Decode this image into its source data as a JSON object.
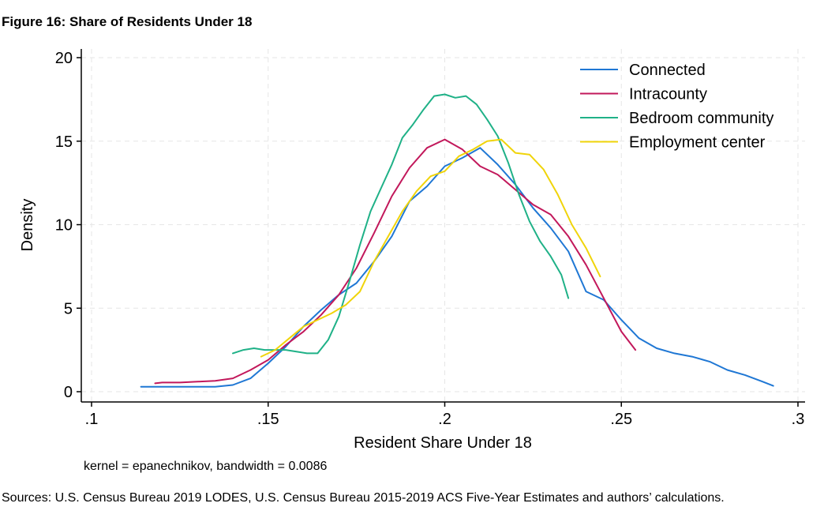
{
  "figure_title": "Figure 16: Share of Residents Under 18",
  "sources": "Sources: U.S. Census Bureau 2019 LODES, U.S. Census Bureau 2015-2019 ACS Five-Year Estimates and authors’ calculations.",
  "chart_data": {
    "type": "line",
    "title": "",
    "xlabel": "Resident Share Under 18",
    "ylabel": "Density",
    "xlim": [
      0.1,
      0.3
    ],
    "ylim": [
      0,
      20
    ],
    "xticks": [
      0.1,
      0.15,
      0.2,
      0.25,
      0.3
    ],
    "xtick_labels": [
      ".1",
      ".15",
      ".2",
      ".25",
      ".3"
    ],
    "yticks": [
      0,
      5,
      10,
      15,
      20
    ],
    "ytick_labels": [
      "0",
      "5",
      "10",
      "15",
      "20"
    ],
    "grid": true,
    "legend_position": "top-right",
    "note": "kernel = epanechnikov, bandwidth = 0.0086",
    "series": [
      {
        "name": "Connected",
        "color": "#1f77d4",
        "x": [
          0.114,
          0.12,
          0.13,
          0.135,
          0.14,
          0.145,
          0.15,
          0.155,
          0.16,
          0.165,
          0.17,
          0.175,
          0.18,
          0.185,
          0.19,
          0.195,
          0.2,
          0.205,
          0.21,
          0.215,
          0.22,
          0.225,
          0.23,
          0.235,
          0.24,
          0.245,
          0.25,
          0.255,
          0.26,
          0.265,
          0.27,
          0.275,
          0.28,
          0.285,
          0.29,
          0.293
        ],
        "y": [
          0.3,
          0.3,
          0.3,
          0.3,
          0.4,
          0.8,
          1.7,
          2.7,
          3.9,
          4.9,
          5.8,
          6.5,
          7.8,
          9.3,
          11.4,
          12.3,
          13.5,
          14.0,
          14.6,
          13.6,
          12.4,
          11.0,
          9.8,
          8.4,
          6.0,
          5.5,
          4.3,
          3.2,
          2.6,
          2.3,
          2.1,
          1.8,
          1.3,
          1.0,
          0.6,
          0.35
        ]
      },
      {
        "name": "Intracounty",
        "color": "#c2185b",
        "x": [
          0.118,
          0.12,
          0.125,
          0.13,
          0.135,
          0.14,
          0.145,
          0.15,
          0.155,
          0.16,
          0.165,
          0.17,
          0.175,
          0.18,
          0.185,
          0.19,
          0.195,
          0.2,
          0.205,
          0.21,
          0.215,
          0.22,
          0.225,
          0.23,
          0.235,
          0.24,
          0.245,
          0.25,
          0.254
        ],
        "y": [
          0.5,
          0.55,
          0.55,
          0.6,
          0.65,
          0.8,
          1.3,
          1.9,
          2.8,
          3.6,
          4.6,
          5.8,
          7.4,
          9.5,
          11.7,
          13.4,
          14.6,
          15.1,
          14.5,
          13.5,
          13.0,
          12.1,
          11.2,
          10.6,
          9.3,
          7.6,
          5.6,
          3.6,
          2.5
        ]
      },
      {
        "name": "Bedroom community",
        "color": "#1fb187",
        "x": [
          0.14,
          0.143,
          0.146,
          0.149,
          0.152,
          0.155,
          0.158,
          0.161,
          0.164,
          0.167,
          0.17,
          0.173,
          0.176,
          0.179,
          0.182,
          0.185,
          0.188,
          0.191,
          0.194,
          0.197,
          0.2,
          0.203,
          0.206,
          0.209,
          0.212,
          0.215,
          0.218,
          0.221,
          0.224,
          0.227,
          0.23,
          0.233,
          0.235
        ],
        "y": [
          2.3,
          2.5,
          2.6,
          2.5,
          2.5,
          2.5,
          2.4,
          2.3,
          2.3,
          3.1,
          4.5,
          6.6,
          8.8,
          10.8,
          12.2,
          13.6,
          15.2,
          16.0,
          16.9,
          17.7,
          17.8,
          17.6,
          17.7,
          17.2,
          16.3,
          15.3,
          13.7,
          11.8,
          10.2,
          9.0,
          8.1,
          7.0,
          5.6
        ]
      },
      {
        "name": "Employment center",
        "color": "#f0d40a",
        "x": [
          0.148,
          0.152,
          0.156,
          0.16,
          0.164,
          0.168,
          0.172,
          0.176,
          0.18,
          0.184,
          0.188,
          0.192,
          0.196,
          0.2,
          0.204,
          0.208,
          0.212,
          0.216,
          0.22,
          0.224,
          0.228,
          0.232,
          0.236,
          0.24,
          0.244
        ],
        "y": [
          2.1,
          2.5,
          3.2,
          3.9,
          4.3,
          4.7,
          5.2,
          6.0,
          7.8,
          9.3,
          10.8,
          12.0,
          12.9,
          13.2,
          14.1,
          14.5,
          15.0,
          15.1,
          14.3,
          14.2,
          13.3,
          11.8,
          10.0,
          8.6,
          6.9
        ]
      }
    ]
  }
}
